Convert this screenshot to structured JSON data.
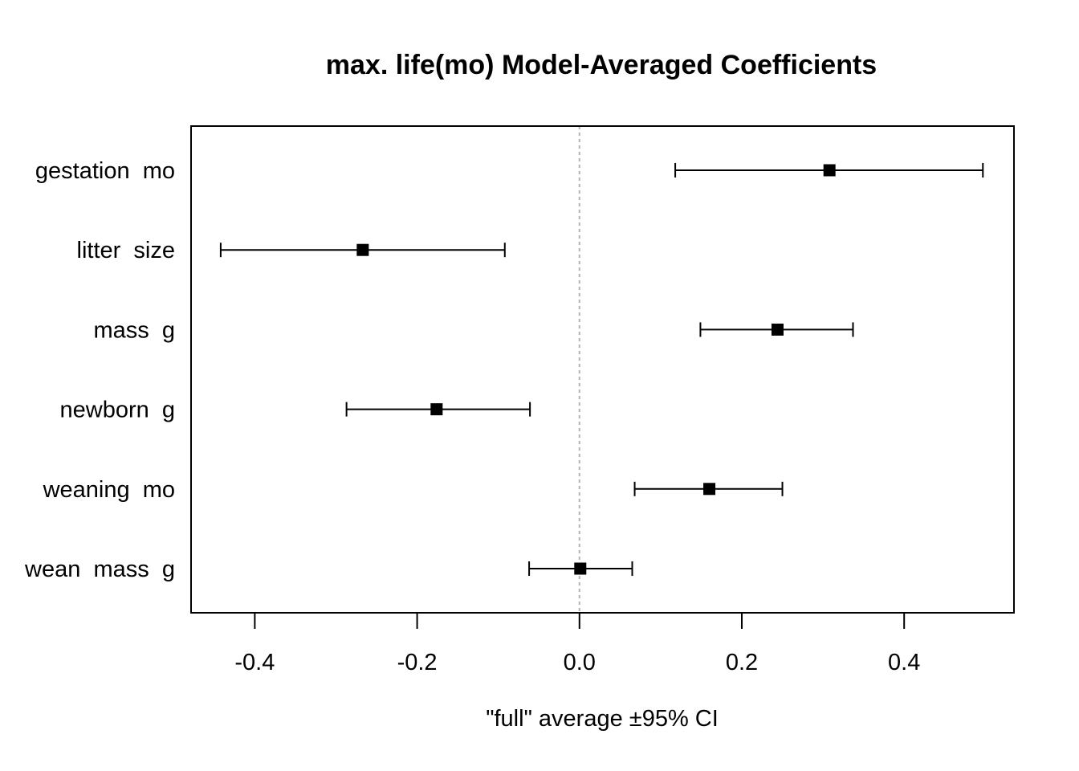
{
  "chart_data": {
    "type": "scatter",
    "title": "max. life(mo) Model-Averaged Coefficients",
    "xlabel": "\"full\" average ±95% CI",
    "ylabel": "",
    "xlim": [
      -0.4785,
      0.5353
    ],
    "xticks": [
      -0.4,
      -0.2,
      0.0,
      0.2,
      0.4
    ],
    "xtick_labels": [
      "-0.4",
      "-0.2",
      "0.0",
      "0.2",
      "0.4"
    ],
    "zero_reference_line": true,
    "grid": false,
    "legend": "none",
    "marker": "square",
    "colors": {
      "marker": "#000000",
      "whisker": "#000000",
      "zero_line": "#b3b3b3",
      "frame": "#000000"
    },
    "series": [
      {
        "categories": [
          "gestation_mo",
          "litter_size",
          "mass_g",
          "newborn_g",
          "weaning_mo",
          "wean_mass_g"
        ],
        "category_labels": [
          "gestation  mo",
          "litter  size",
          "mass  g",
          "newborn  g",
          "weaning  mo",
          "wean  mass  g"
        ],
        "estimate": [
          0.308,
          -0.267,
          0.244,
          -0.176,
          0.16,
          0.001
        ],
        "ci_low": [
          0.118,
          -0.442,
          0.149,
          -0.287,
          0.068,
          -0.062
        ],
        "ci_high": [
          0.497,
          -0.092,
          0.337,
          -0.061,
          0.25,
          0.065
        ]
      }
    ]
  }
}
